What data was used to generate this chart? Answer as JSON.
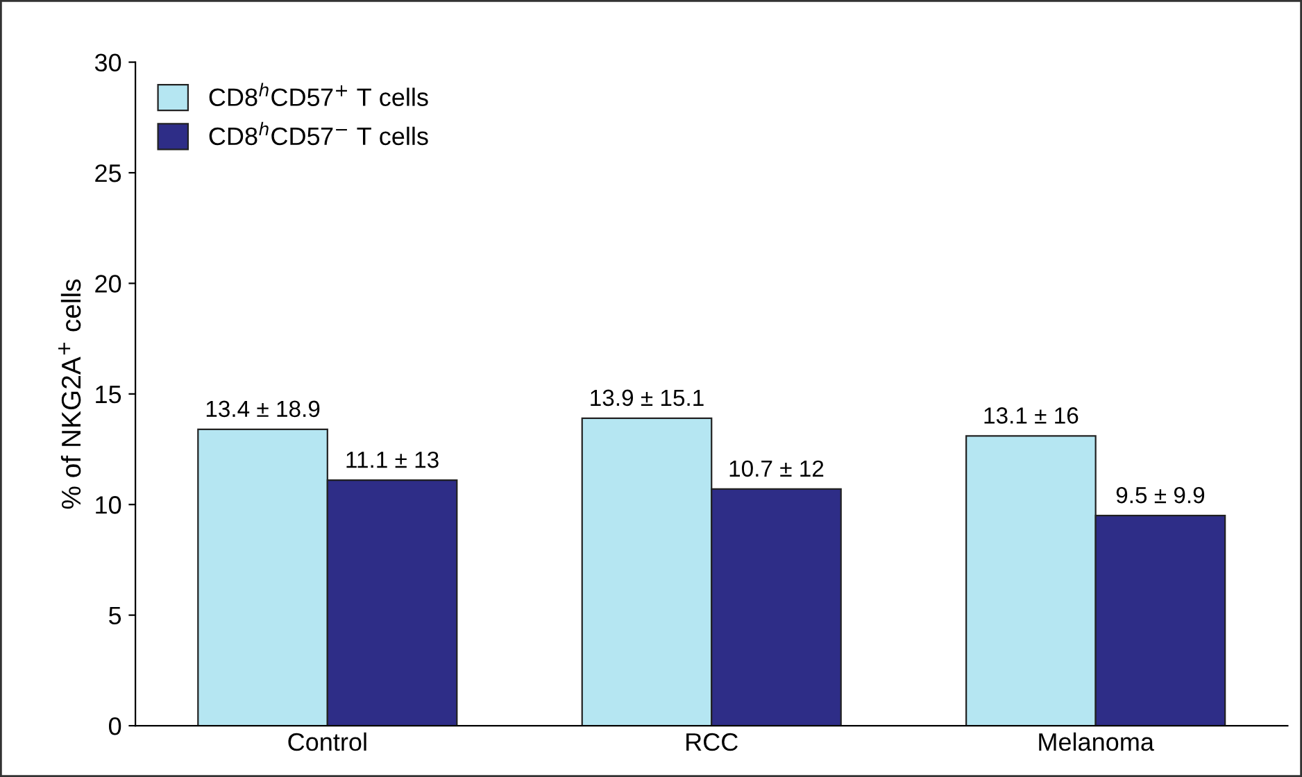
{
  "chart_data": {
    "type": "bar",
    "ylabel": "% of NKG2A$^{+}$ cells",
    "categories": [
      "Control",
      "RCC",
      "Melanoma"
    ],
    "series": [
      {
        "name": "CD8$^{h}$CD57$^{+}$ T cells",
        "color": "#b5e6f2",
        "values": [
          13.4,
          13.9,
          13.1
        ],
        "value_labels": [
          "13.4 ± 18.9",
          "13.9 ± 15.1",
          "13.1 ± 16"
        ]
      },
      {
        "name": "CD8$^{h}$CD57$^{−}$ T cells",
        "color": "#2e2d87",
        "values": [
          11.1,
          10.7,
          9.5
        ],
        "value_labels": [
          "11.1 ± 13",
          "10.7 ± 12",
          "9.5 ± 9.9"
        ]
      }
    ],
    "ylim": [
      0,
      30
    ],
    "yticks": [
      0,
      5,
      10,
      15,
      20,
      25,
      30
    ],
    "legend": "top left",
    "grid": false
  }
}
